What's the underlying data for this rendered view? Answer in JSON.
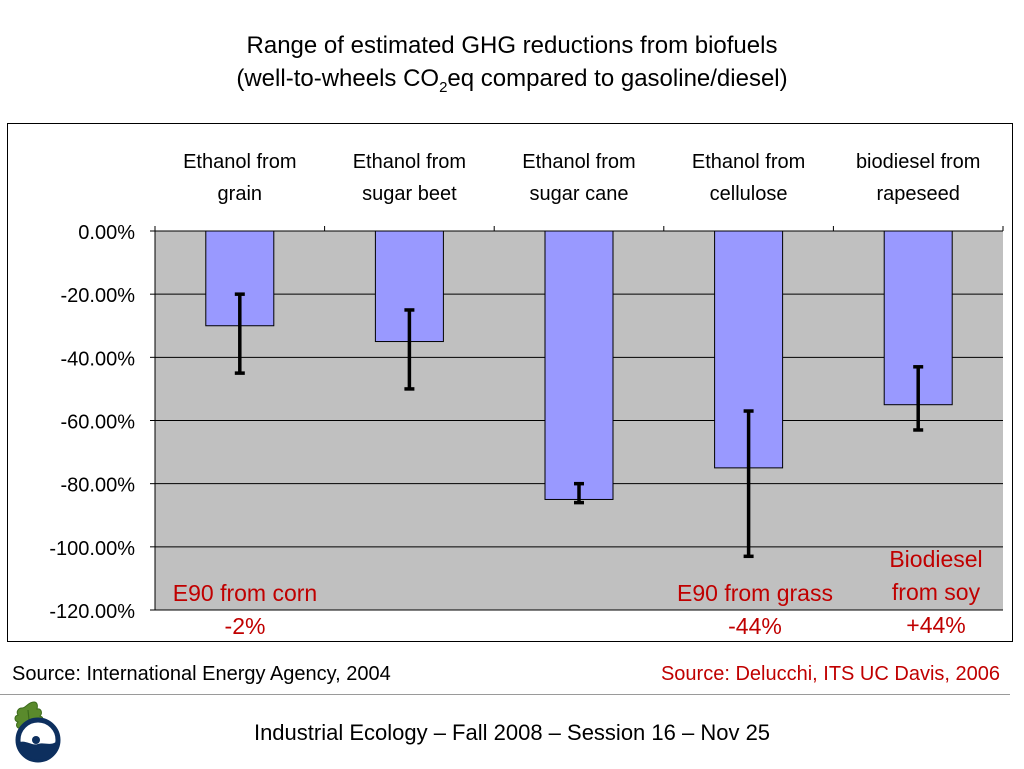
{
  "title": {
    "line1": "Range of estimated GHG reductions from biofuels",
    "line2_pre": "(well-to-wheels CO",
    "line2_sub": "2",
    "line2_post": "eq compared to gasoline/diesel)"
  },
  "chart_data": {
    "type": "bar",
    "categories": [
      [
        "Ethanol from",
        "grain"
      ],
      [
        "Ethanol from",
        "sugar beet"
      ],
      [
        "Ethanol from",
        "sugar cane"
      ],
      [
        "Ethanol from",
        "cellulose"
      ],
      [
        "biodiesel from",
        "rapeseed"
      ]
    ],
    "values": [
      -30,
      -35,
      -85,
      -75,
      -55
    ],
    "error_ranges": [
      [
        -20,
        -45
      ],
      [
        -25,
        -50
      ],
      [
        -80,
        -86
      ],
      [
        -57,
        -103
      ],
      [
        -43,
        -63
      ]
    ],
    "ylim": [
      -120,
      0
    ],
    "yticks": [
      0,
      -20,
      -40,
      -60,
      -80,
      -100,
      -120
    ],
    "ytick_labels": [
      "0.00%",
      "-20.00%",
      "-40.00%",
      "-60.00%",
      "-80.00%",
      "-100.00%",
      "-120.00%"
    ],
    "grid": true,
    "colors": {
      "bar": "#9999ff",
      "plot_bg": "#c0c0c0",
      "error": "#000000"
    }
  },
  "notes": {
    "corn_line1": "E90 from corn",
    "corn_line2": "-2%",
    "grass_line1": "E90 from grass",
    "grass_line2": "-44%",
    "soy_line1": "Biodiesel",
    "soy_line2": "from soy",
    "soy_line3": "+44%",
    "color": "#c00000"
  },
  "sources": {
    "left": "Source: International Energy Agency, 2004",
    "right": "Source: Delucchi, ITS UC Davis, 2006"
  },
  "footer": "Industrial Ecology – Fall 2008 – Session 16 – Nov 25",
  "logo": {
    "icon": "oak-leaf-globe-icon"
  }
}
